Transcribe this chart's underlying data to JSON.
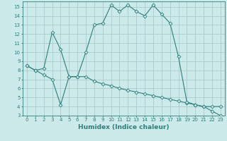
{
  "background_color": "#cceaea",
  "grid_color": "#aacccc",
  "line_color": "#2e7d7d",
  "xlabel": "Humidex (Indice chaleur)",
  "xlim": [
    -0.5,
    23.5
  ],
  "ylim": [
    3,
    15.6
  ],
  "xticks": [
    0,
    1,
    2,
    3,
    4,
    5,
    6,
    7,
    8,
    9,
    10,
    11,
    12,
    13,
    14,
    15,
    16,
    17,
    18,
    19,
    20,
    21,
    22,
    23
  ],
  "yticks": [
    3,
    4,
    5,
    6,
    7,
    8,
    9,
    10,
    11,
    12,
    13,
    14,
    15
  ],
  "line1_x": [
    0,
    1,
    2,
    3,
    4,
    5,
    6,
    7,
    8,
    9,
    10,
    11,
    12,
    13,
    14,
    15,
    16,
    17,
    18,
    19,
    20,
    21,
    22,
    23
  ],
  "line1_y": [
    8.5,
    8.0,
    7.5,
    7.0,
    4.2,
    7.3,
    7.3,
    7.3,
    6.8,
    6.5,
    6.3,
    6.0,
    5.8,
    5.6,
    5.4,
    5.2,
    5.0,
    4.8,
    4.6,
    4.4,
    4.2,
    4.0,
    4.0,
    4.0
  ],
  "line2_x": [
    0,
    1,
    2,
    3,
    4,
    5,
    6,
    7,
    8,
    9,
    10,
    11,
    12,
    13,
    14,
    15,
    16,
    17,
    18,
    19,
    20,
    21,
    22,
    23
  ],
  "line2_y": [
    8.5,
    8.0,
    8.2,
    12.2,
    10.3,
    7.3,
    7.3,
    10.0,
    13.0,
    13.2,
    15.2,
    14.5,
    15.2,
    14.5,
    14.0,
    15.2,
    14.2,
    13.2,
    9.5,
    4.5,
    4.2,
    4.0,
    3.5,
    3.0
  ],
  "marker_size": 2.5,
  "tick_fontsize": 5.0,
  "xlabel_fontsize": 6.5
}
